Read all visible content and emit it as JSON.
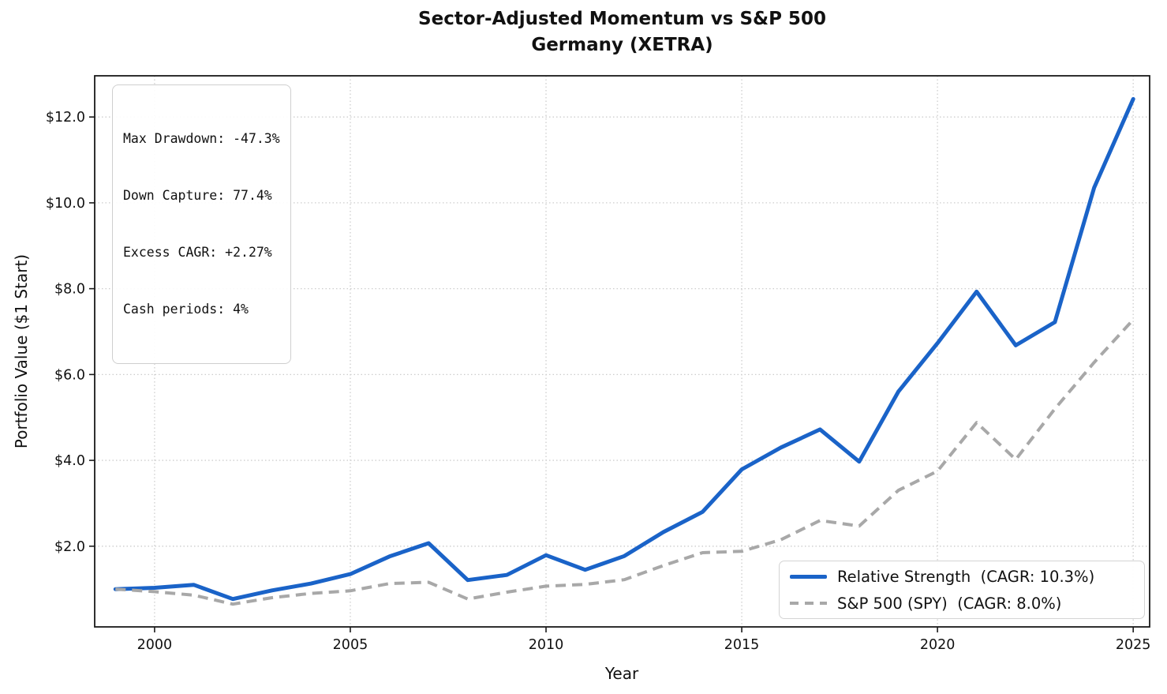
{
  "title": {
    "line1": "Sector-Adjusted Momentum vs S&P 500",
    "line2": "Germany (XETRA)"
  },
  "stats_box": {
    "lines": [
      "Max Drawdown: -47.3%",
      "Down Capture: 77.4%",
      "Excess CAGR: +2.27%",
      "Cash periods: 4%"
    ]
  },
  "legend": {
    "items": [
      {
        "label": "Relative Strength  (CAGR: 10.3%)",
        "style": "solid"
      },
      {
        "label": "S&P 500 (SPY)  (CAGR: 8.0%)",
        "style": "dashed"
      }
    ]
  },
  "colors": {
    "strategy_line": "#1a63c8",
    "benchmark_line": "#a8a8a8",
    "gridline": "#cdcdcd",
    "frame": "#1a1a1a",
    "text": "#111111"
  },
  "chart_data": {
    "type": "line",
    "title": "Sector-Adjusted Momentum vs S&P 500 — Germany (XETRA)",
    "xlabel": "Year",
    "ylabel": "Portfolio Value ($1 Start)",
    "x": [
      1999,
      2000,
      2001,
      2002,
      2003,
      2004,
      2005,
      2006,
      2007,
      2008,
      2009,
      2010,
      2011,
      2012,
      2013,
      2014,
      2015,
      2016,
      2017,
      2018,
      2019,
      2020,
      2021,
      2022,
      2023,
      2024,
      2025
    ],
    "series": [
      {
        "name": "Relative Strength  (CAGR: 10.3%)",
        "color": "#1a63c8",
        "style": "solid",
        "values": [
          1.0,
          1.03,
          1.1,
          0.77,
          0.97,
          1.13,
          1.35,
          1.76,
          2.07,
          1.21,
          1.33,
          1.79,
          1.45,
          1.77,
          2.33,
          2.8,
          3.79,
          4.3,
          4.72,
          3.97,
          5.6,
          6.73,
          7.93,
          6.68,
          7.22,
          10.35,
          12.42
        ]
      },
      {
        "name": "S&P 500 (SPY)  (CAGR: 8.0%)",
        "color": "#a8a8a8",
        "style": "dashed",
        "values": [
          1.0,
          0.94,
          0.86,
          0.65,
          0.8,
          0.9,
          0.96,
          1.13,
          1.16,
          0.77,
          0.93,
          1.07,
          1.11,
          1.22,
          1.55,
          1.85,
          1.88,
          2.15,
          2.6,
          2.47,
          3.3,
          3.75,
          4.88,
          4.02,
          5.2,
          6.28,
          7.28
        ]
      }
    ],
    "xlim": [
      1998.47,
      2025.42
    ],
    "ylim": [
      0.12,
      12.96
    ],
    "x_ticks": [
      2000,
      2005,
      2010,
      2015,
      2020,
      2025
    ],
    "x_tick_labels": [
      "2000",
      "2005",
      "2010",
      "2015",
      "2020",
      "2025"
    ],
    "y_ticks": [
      2,
      4,
      6,
      8,
      10,
      12
    ],
    "y_tick_labels": [
      "$2.0",
      "$4.0",
      "$6.0",
      "$8.0",
      "$10.0",
      "$12.0"
    ],
    "grid": true,
    "grid_style": "dotted",
    "legend_position": "lower right"
  }
}
